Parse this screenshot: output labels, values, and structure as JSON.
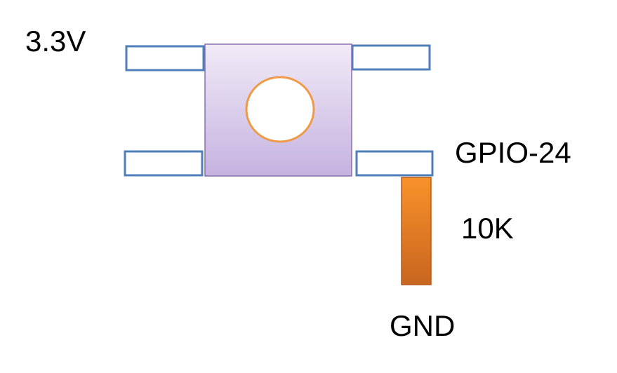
{
  "labels": {
    "supply": "3.3V",
    "gpio": "GPIO-24",
    "resistor": "10K",
    "ground": "GND"
  },
  "colors": {
    "pin_stroke": "#4f7fb8",
    "pin_fill": "#ffffff",
    "body_top": "#f1ebf7",
    "body_bottom": "#c5b2e0",
    "body_stroke": "#8a6fb0",
    "actuator_stroke": "#ef9a47",
    "actuator_fill": "#ffffff",
    "resistor_top": "#f9922a",
    "resistor_bottom": "#c8651f",
    "resistor_stroke": "#b55b1c",
    "text": "#000000"
  },
  "components": {
    "button": {
      "pins": 4
    },
    "resistor": {
      "value": "10K"
    }
  }
}
